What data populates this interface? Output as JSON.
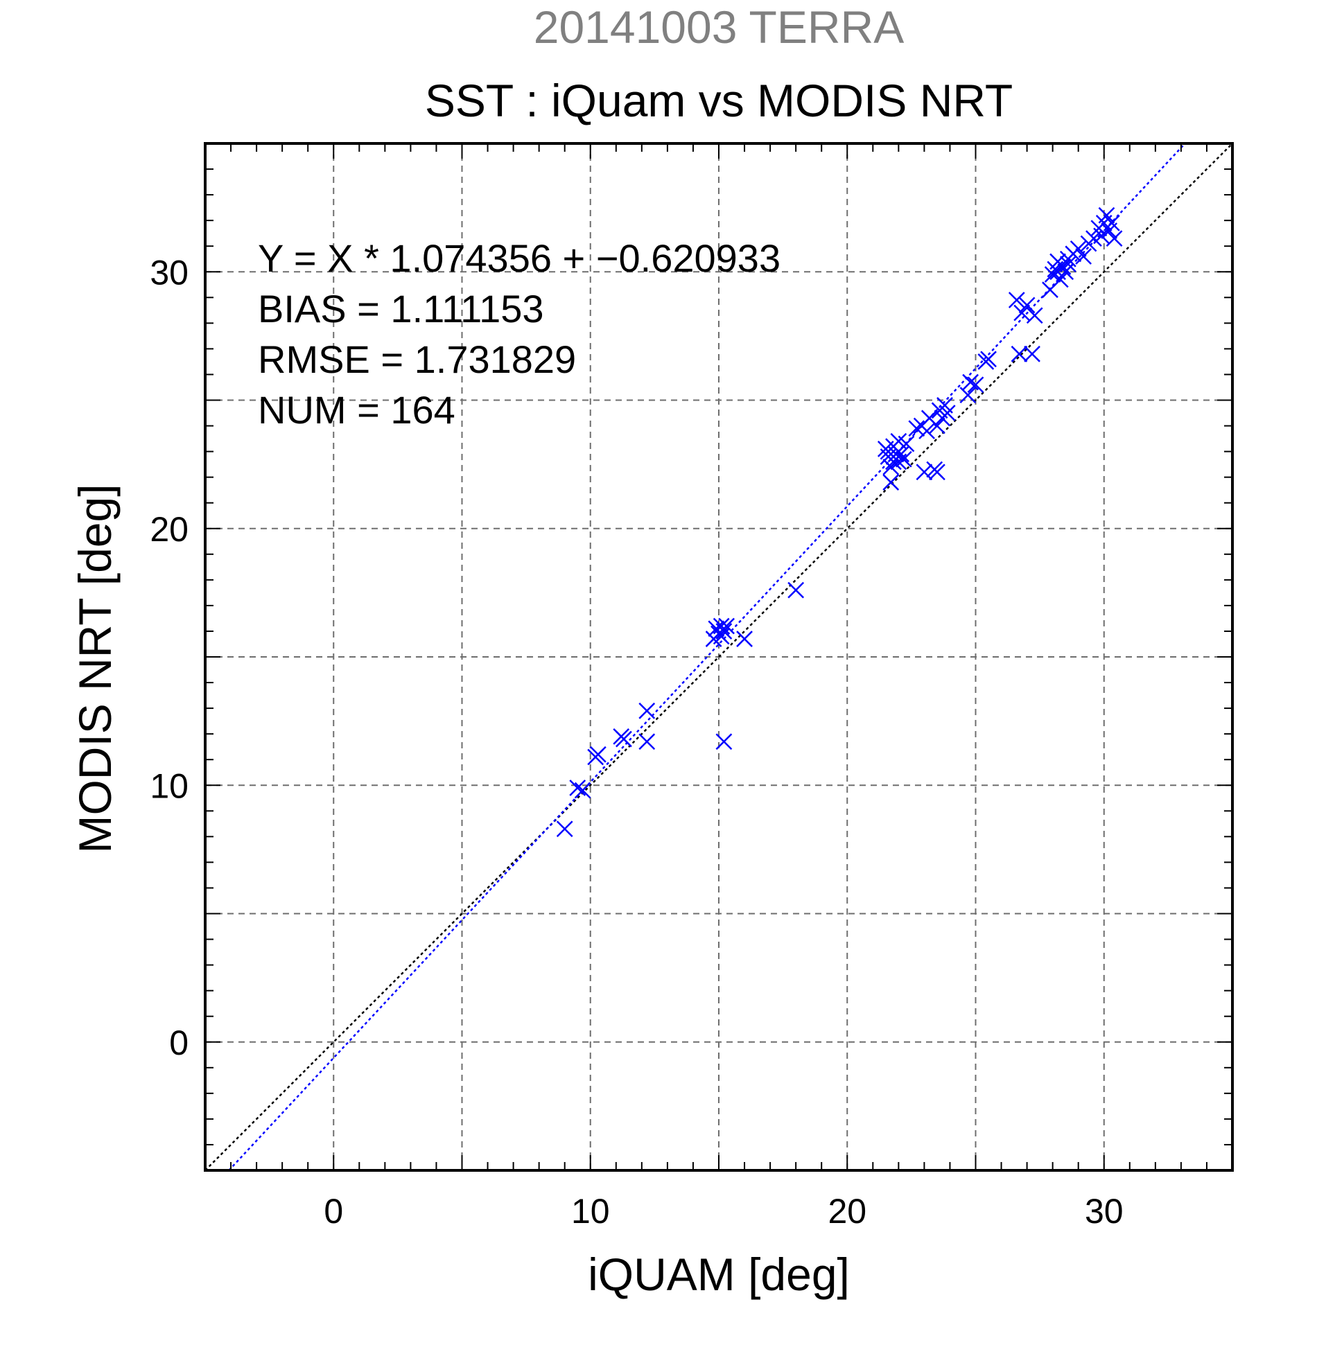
{
  "chart_data": {
    "type": "scatter",
    "supertitle": "20141003 TERRA",
    "title": "SST : iQuam vs MODIS NRT",
    "xlabel": "iQUAM [deg]",
    "ylabel": "MODIS NRT [deg]",
    "xlim": [
      -5,
      35
    ],
    "ylim": [
      -5,
      35
    ],
    "xticks": [
      0,
      10,
      20,
      30
    ],
    "yticks": [
      0,
      10,
      20,
      30
    ],
    "xtick_labels": [
      "0",
      "10",
      "20",
      "30"
    ],
    "ytick_labels": [
      "0",
      "10",
      "20",
      "30"
    ],
    "grid": true,
    "annotations": [
      "Y = X * 1.074356 + −0.620933",
      "BIAS = 1.111153",
      "RMSE = 1.731829",
      "NUM = 164"
    ],
    "reference_lines": [
      {
        "slope": 1.0,
        "intercept": 0.0,
        "color": "#000000",
        "style": "dotted"
      },
      {
        "slope": 1.074356,
        "intercept": -0.620933,
        "color": "#0000ff",
        "style": "dotted"
      }
    ],
    "series": [
      {
        "marker": "x",
        "color": "#0000ff",
        "points": [
          [
            9.0,
            8.3
          ],
          [
            9.5,
            9.9
          ],
          [
            9.7,
            9.8
          ],
          [
            10.2,
            11.1
          ],
          [
            10.3,
            11.2
          ],
          [
            11.2,
            11.9
          ],
          [
            11.3,
            11.8
          ],
          [
            12.2,
            12.9
          ],
          [
            12.2,
            11.7
          ],
          [
            14.8,
            15.7
          ],
          [
            14.9,
            16.1
          ],
          [
            15.0,
            15.9
          ],
          [
            15.1,
            16.2
          ],
          [
            15.2,
            16.0
          ],
          [
            15.3,
            16.2
          ],
          [
            15.2,
            11.7
          ],
          [
            16.0,
            15.7
          ],
          [
            18.0,
            17.6
          ],
          [
            21.5,
            23.1
          ],
          [
            21.6,
            22.8
          ],
          [
            21.7,
            22.4
          ],
          [
            21.7,
            21.8
          ],
          [
            21.8,
            23.2
          ],
          [
            21.9,
            22.9
          ],
          [
            22.0,
            22.6
          ],
          [
            22.0,
            23.4
          ],
          [
            22.1,
            22.9
          ],
          [
            22.2,
            22.7
          ],
          [
            22.3,
            23.3
          ],
          [
            21.8,
            22.6
          ],
          [
            22.7,
            23.9
          ],
          [
            22.9,
            24.0
          ],
          [
            23.0,
            22.2
          ],
          [
            23.1,
            23.8
          ],
          [
            23.2,
            24.3
          ],
          [
            23.4,
            22.3
          ],
          [
            23.5,
            22.2
          ],
          [
            23.5,
            24.0
          ],
          [
            23.6,
            24.6
          ],
          [
            23.7,
            24.3
          ],
          [
            23.8,
            24.8
          ],
          [
            23.9,
            24.5
          ],
          [
            24.7,
            25.2
          ],
          [
            24.8,
            25.7
          ],
          [
            25.0,
            25.6
          ],
          [
            25.4,
            26.5
          ],
          [
            25.5,
            26.6
          ],
          [
            26.6,
            28.9
          ],
          [
            26.7,
            26.8
          ],
          [
            26.8,
            28.4
          ],
          [
            27.0,
            28.7
          ],
          [
            27.2,
            26.8
          ],
          [
            27.3,
            28.3
          ],
          [
            27.9,
            29.3
          ],
          [
            28.0,
            29.9
          ],
          [
            28.1,
            30.1
          ],
          [
            28.2,
            30.4
          ],
          [
            28.3,
            29.7
          ],
          [
            28.4,
            30.2
          ],
          [
            28.5,
            30.0
          ],
          [
            28.6,
            30.3
          ],
          [
            28.8,
            30.7
          ],
          [
            29.0,
            30.9
          ],
          [
            29.2,
            30.6
          ],
          [
            29.4,
            31.1
          ],
          [
            29.6,
            31.3
          ],
          [
            29.8,
            31.7
          ],
          [
            30.0,
            31.9
          ],
          [
            30.1,
            32.2
          ],
          [
            30.2,
            31.6
          ],
          [
            30.3,
            31.9
          ],
          [
            30.4,
            31.3
          ],
          [
            29.9,
            31.4
          ],
          [
            28.2,
            30.0
          ],
          [
            28.6,
            30.5
          ],
          [
            22.0,
            23.0
          ],
          [
            21.6,
            23.0
          ],
          [
            15.1,
            15.8
          ]
        ]
      }
    ]
  }
}
